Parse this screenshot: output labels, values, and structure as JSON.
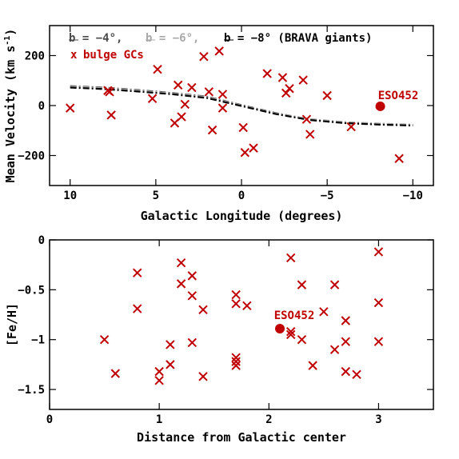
{
  "chart_data": [
    {
      "type": "scatter",
      "xlabel": "Galactic Longitude (degrees)",
      "ylabel": "Mean Velocity (km s",
      "ylabel_sup": "-1",
      "ylabel_close": ")",
      "xlim": [
        11.2,
        -11.2
      ],
      "ylim": [
        -320,
        320
      ],
      "xticks": [
        10,
        5,
        0,
        -5,
        -10
      ],
      "xtick_labels": [
        "10",
        "5",
        "0",
        "−5",
        "−10"
      ],
      "yticks": [
        -200,
        0,
        200
      ],
      "ytick_labels": [
        "−200",
        "0",
        "200"
      ],
      "grid": false,
      "legend": {
        "placement": "top",
        "entries": [
          {
            "label": "b = −4°,",
            "color": "#4a4a4a",
            "marker": "dashdot"
          },
          {
            "label": "b = −6°,",
            "color": "#a8a8a8",
            "marker": "dashdot"
          },
          {
            "label": "b = −8° (BRAVA giants)",
            "color": "#000000",
            "marker": "dashdot"
          },
          {
            "label": "bulge GCs",
            "color": "#c00000",
            "marker": "x",
            "symbol": "x"
          }
        ]
      },
      "series": [
        {
          "name": "b = −4°,",
          "style": "dashdot",
          "color": "#4a4a4a",
          "x": [
            10,
            8,
            6,
            4,
            2,
            0,
            -2,
            -4,
            -6,
            -8,
            -10
          ],
          "y": [
            78,
            72,
            62,
            50,
            36,
            2,
            -30,
            -56,
            -69,
            -74,
            -78
          ]
        },
        {
          "name": "b = −6°,",
          "style": "dashdot",
          "color": "#a8a8a8",
          "x": [
            10,
            8,
            6,
            4,
            2,
            0,
            -2,
            -4,
            -6,
            -8,
            -10
          ],
          "y": [
            76,
            70,
            60,
            48,
            34,
            0,
            -32,
            -54,
            -66,
            -72,
            -76
          ]
        },
        {
          "name": "b = −8° (BRAVA giants)",
          "style": "dashdot",
          "color": "#000000",
          "x": [
            10,
            8,
            6,
            4,
            2,
            0,
            -2,
            -4,
            -6,
            -8,
            -10
          ],
          "y": [
            72,
            66,
            56,
            45,
            30,
            -2,
            -34,
            -58,
            -70,
            -76,
            -80
          ]
        },
        {
          "name": "bulge GCs",
          "marker": "x",
          "color": "#c00000",
          "points": [
            [
              10.0,
              -10
            ],
            [
              7.8,
              60
            ],
            [
              7.7,
              55
            ],
            [
              7.6,
              -38
            ],
            [
              5.2,
              28
            ],
            [
              4.9,
              145
            ],
            [
              3.7,
              82
            ],
            [
              3.5,
              -45
            ],
            [
              3.3,
              5
            ],
            [
              3.9,
              -70
            ],
            [
              2.9,
              72
            ],
            [
              2.2,
              196
            ],
            [
              1.9,
              55
            ],
            [
              1.7,
              -98
            ],
            [
              1.3,
              218
            ],
            [
              1.1,
              45
            ],
            [
              1.1,
              -10
            ],
            [
              -0.1,
              -88
            ],
            [
              -0.2,
              -188
            ],
            [
              -0.7,
              -170
            ],
            [
              -1.5,
              128
            ],
            [
              -2.4,
              112
            ],
            [
              -2.6,
              50
            ],
            [
              -2.8,
              68
            ],
            [
              -3.6,
              102
            ],
            [
              -3.8,
              -55
            ],
            [
              -4.0,
              -115
            ],
            [
              -5.0,
              40
            ],
            [
              -6.4,
              -85
            ],
            [
              -9.2,
              -212
            ]
          ]
        },
        {
          "name": "ESO452",
          "marker": "circle",
          "color": "#c00000",
          "points": [
            [
              -8.1,
              -3
            ]
          ]
        }
      ],
      "annotations": [
        {
          "text": "ESO452",
          "x": -8.1,
          "y": -3,
          "color": "#c00000"
        }
      ]
    },
    {
      "type": "scatter",
      "xlabel": "Distance from Galactic center",
      "ylabel": "[Fe/H]",
      "xlim": [
        0,
        3.5
      ],
      "ylim": [
        -1.7,
        0
      ],
      "xticks": [
        0,
        1,
        2,
        3
      ],
      "xtick_labels": [
        "0",
        "1",
        "2",
        "3"
      ],
      "yticks": [
        -1.5,
        -1,
        -0.5,
        0
      ],
      "ytick_labels": [
        "−1.5",
        "−1",
        "−0.5",
        "0"
      ],
      "grid": false,
      "series": [
        {
          "name": "bulge GCs",
          "marker": "x",
          "color": "#c00000",
          "points": [
            [
              0.5,
              -1.0
            ],
            [
              0.6,
              -1.34
            ],
            [
              0.8,
              -0.33
            ],
            [
              0.8,
              -0.69
            ],
            [
              1.0,
              -1.32
            ],
            [
              1.0,
              -1.41
            ],
            [
              1.1,
              -1.05
            ],
            [
              1.1,
              -1.25
            ],
            [
              1.2,
              -0.23
            ],
            [
              1.2,
              -0.44
            ],
            [
              1.3,
              -0.36
            ],
            [
              1.3,
              -0.56
            ],
            [
              1.3,
              -1.03
            ],
            [
              1.4,
              -0.7
            ],
            [
              1.4,
              -1.37
            ],
            [
              1.7,
              -0.55
            ],
            [
              1.7,
              -0.64
            ],
            [
              1.7,
              -1.18
            ],
            [
              1.7,
              -1.22
            ],
            [
              1.7,
              -1.26
            ],
            [
              1.8,
              -0.66
            ],
            [
              2.2,
              -0.18
            ],
            [
              2.2,
              -0.92
            ],
            [
              2.2,
              -0.95
            ],
            [
              2.3,
              -0.45
            ],
            [
              2.3,
              -1.0
            ],
            [
              2.4,
              -1.26
            ],
            [
              2.5,
              -0.72
            ],
            [
              2.6,
              -0.45
            ],
            [
              2.6,
              -1.1
            ],
            [
              2.7,
              -0.81
            ],
            [
              2.7,
              -1.02
            ],
            [
              2.7,
              -1.32
            ],
            [
              2.8,
              -1.35
            ],
            [
              3.0,
              -0.12
            ],
            [
              3.0,
              -0.63
            ],
            [
              3.0,
              -1.02
            ]
          ]
        },
        {
          "name": "ESO452",
          "marker": "circle",
          "color": "#c00000",
          "points": [
            [
              2.1,
              -0.89
            ]
          ]
        }
      ],
      "annotations": [
        {
          "text": "ESO452",
          "x": 2.1,
          "y": -0.89,
          "color": "#c00000"
        }
      ]
    }
  ]
}
